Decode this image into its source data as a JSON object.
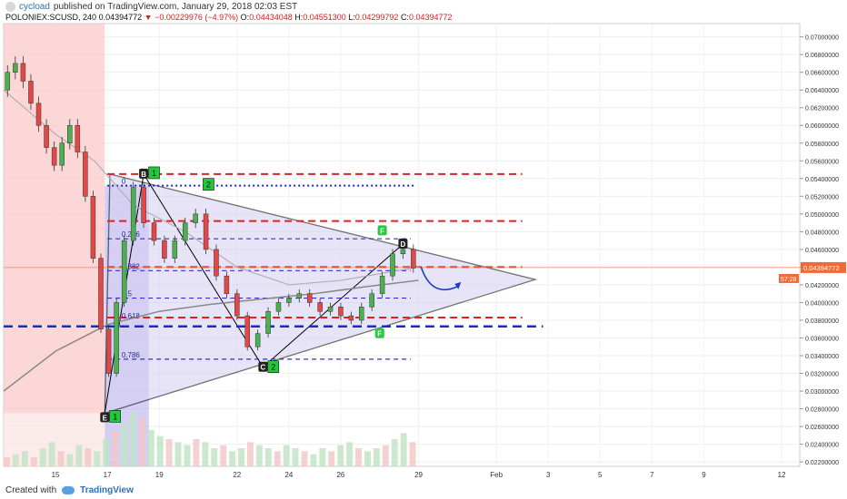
{
  "header": {
    "user": "cycload",
    "published_text": "published on TradingView.com, January 29, 2018 02:03 EST",
    "symbol": "POLONIEX:SCUSD, 240",
    "last": "0.04394772",
    "change": "−0.00229976 (−4.97%)",
    "ohlc": [
      {
        "label": "O:",
        "value": "0.04434048"
      },
      {
        "label": "H:",
        "value": "0.04551300"
      },
      {
        "label": "L:",
        "value": "0.04299792"
      },
      {
        "label": "C:",
        "value": "0.04394772"
      }
    ]
  },
  "footer": {
    "created_with": "Created with",
    "brand": "TradingView"
  },
  "chart_data": {
    "type": "line",
    "x_tick_labels": [
      "15",
      "17",
      "19",
      "22",
      "24",
      "26",
      "29",
      "Feb",
      "3",
      "5",
      "7",
      "9",
      "12"
    ],
    "y_ticks": [
      0.022,
      0.024,
      0.026,
      0.028,
      0.03,
      0.032,
      0.034,
      0.036,
      0.038,
      0.04,
      0.042,
      0.044,
      0.046,
      0.048,
      0.05,
      0.052,
      0.054,
      0.056,
      0.058,
      0.06,
      0.062,
      0.064,
      0.066,
      0.068,
      0.07
    ],
    "y_tick_labels": [
      "0.02200000",
      "0.02400000",
      "0.02600000",
      "0.02800000",
      "0.03000000",
      "0.03200000",
      "0.03400000",
      "0.03600000",
      "0.03800000",
      "0.04000000",
      "0.04200000",
      "0.04400000",
      "0.04600000",
      "0.04800000",
      "0.05000000",
      "0.05200000",
      "0.05400000",
      "0.05600000",
      "0.05800000",
      "0.06000000",
      "0.06200000",
      "0.06400000",
      "0.06600000",
      "0.06800000",
      "0.07000000"
    ],
    "ylim": [
      0.0215,
      0.0715
    ],
    "last_price": 0.04394772,
    "last_price_label": "0.04394772",
    "countdown": "57:28",
    "price_path": [
      {
        "d": 13.0,
        "p": 0.064
      },
      {
        "d": 13.3,
        "p": 0.066
      },
      {
        "d": 13.6,
        "p": 0.067
      },
      {
        "d": 13.9,
        "p": 0.065
      },
      {
        "d": 14.2,
        "p": 0.0625
      },
      {
        "d": 14.5,
        "p": 0.06
      },
      {
        "d": 14.8,
        "p": 0.0575
      },
      {
        "d": 15.1,
        "p": 0.0555
      },
      {
        "d": 15.4,
        "p": 0.058
      },
      {
        "d": 15.7,
        "p": 0.06
      },
      {
        "d": 16.0,
        "p": 0.057
      },
      {
        "d": 16.3,
        "p": 0.052
      },
      {
        "d": 16.6,
        "p": 0.045
      },
      {
        "d": 16.9,
        "p": 0.037
      },
      {
        "d": 17.2,
        "p": 0.032
      },
      {
        "d": 17.5,
        "p": 0.04
      },
      {
        "d": 17.8,
        "p": 0.047
      },
      {
        "d": 18.2,
        "p": 0.053
      },
      {
        "d": 18.6,
        "p": 0.049
      },
      {
        "d": 19.0,
        "p": 0.047
      },
      {
        "d": 19.4,
        "p": 0.045
      },
      {
        "d": 19.8,
        "p": 0.047
      },
      {
        "d": 20.2,
        "p": 0.049
      },
      {
        "d": 20.6,
        "p": 0.05
      },
      {
        "d": 21.0,
        "p": 0.046
      },
      {
        "d": 21.4,
        "p": 0.043
      },
      {
        "d": 21.8,
        "p": 0.041
      },
      {
        "d": 22.2,
        "p": 0.0385
      },
      {
        "d": 22.6,
        "p": 0.035
      },
      {
        "d": 23.0,
        "p": 0.0365
      },
      {
        "d": 23.4,
        "p": 0.039
      },
      {
        "d": 23.8,
        "p": 0.04
      },
      {
        "d": 24.2,
        "p": 0.0405
      },
      {
        "d": 24.6,
        "p": 0.041
      },
      {
        "d": 25.0,
        "p": 0.04
      },
      {
        "d": 25.4,
        "p": 0.039
      },
      {
        "d": 25.8,
        "p": 0.0395
      },
      {
        "d": 26.2,
        "p": 0.0385
      },
      {
        "d": 26.6,
        "p": 0.038
      },
      {
        "d": 27.0,
        "p": 0.0395
      },
      {
        "d": 27.4,
        "p": 0.041
      },
      {
        "d": 27.8,
        "p": 0.043
      },
      {
        "d": 28.2,
        "p": 0.0455
      },
      {
        "d": 28.6,
        "p": 0.046
      },
      {
        "d": 29.0,
        "p": 0.0439
      }
    ],
    "moving_average": [
      {
        "d": 13.0,
        "p": 0.064
      },
      {
        "d": 15.0,
        "p": 0.059
      },
      {
        "d": 16.5,
        "p": 0.056
      },
      {
        "d": 18.0,
        "p": 0.051
      },
      {
        "d": 20.0,
        "p": 0.048
      },
      {
        "d": 22.0,
        "p": 0.044
      },
      {
        "d": 24.0,
        "p": 0.042
      },
      {
        "d": 26.0,
        "p": 0.0425
      },
      {
        "d": 28.0,
        "p": 0.0435
      },
      {
        "d": 29.0,
        "p": 0.044
      }
    ],
    "long_average": [
      {
        "d": 13.0,
        "p": 0.03
      },
      {
        "d": 15.0,
        "p": 0.0345
      },
      {
        "d": 17.0,
        "p": 0.0375
      },
      {
        "d": 19.0,
        "p": 0.039
      },
      {
        "d": 21.0,
        "p": 0.0398
      },
      {
        "d": 23.0,
        "p": 0.0404
      },
      {
        "d": 25.0,
        "p": 0.041
      },
      {
        "d": 27.0,
        "p": 0.0418
      },
      {
        "d": 29.0,
        "p": 0.0425
      }
    ],
    "triangle": [
      {
        "d": 16.9,
        "p": 0.0275
      },
      {
        "d": 17.1,
        "p": 0.0545
      },
      {
        "d": 33.5,
        "p": 0.0426
      }
    ],
    "red_dashed_levels": [
      0.0545,
      0.0492,
      0.044,
      0.0383
    ],
    "blue_dashed_levels": [
      0.0472,
      0.0436,
      0.0405,
      0.0336
    ],
    "navy_dashed_level": 0.0373,
    "blue_dotted_level": 0.0532,
    "fib_labels": [
      {
        "text": "0",
        "p": 0.0532
      },
      {
        "text": "0.236",
        "p": 0.0472
      },
      {
        "text": "0.382",
        "p": 0.0436
      },
      {
        "text": "0.5",
        "p": 0.0405
      },
      {
        "text": "0.618",
        "p": 0.038
      },
      {
        "text": "0.786",
        "p": 0.0336
      }
    ],
    "pattern_labels": [
      {
        "text": "B",
        "d": 18.4,
        "p": 0.0545
      },
      {
        "text": "C",
        "d": 23.0,
        "p": 0.0327
      },
      {
        "text": "D",
        "d": 28.4,
        "p": 0.0466
      },
      {
        "text": "E",
        "d": 16.9,
        "p": 0.027
      },
      {
        "text": "F",
        "d": 27.6,
        "p": 0.0481
      },
      {
        "text": "F",
        "d": 27.5,
        "p": 0.0365
      }
    ],
    "count_badges": [
      {
        "text": "1",
        "d": 18.8,
        "p": 0.0546
      },
      {
        "text": "2",
        "d": 20.9,
        "p": 0.0533
      },
      {
        "text": "2",
        "d": 23.4,
        "p": 0.0327
      },
      {
        "text": "1",
        "d": 17.3,
        "p": 0.0271
      }
    ],
    "volume": [
      3,
      4,
      5,
      3,
      6,
      8,
      5,
      4,
      7,
      6,
      5,
      9,
      12,
      14,
      18,
      16,
      12,
      10,
      9,
      8,
      7,
      9,
      8,
      6,
      7,
      5,
      6,
      8,
      7,
      6,
      5,
      7,
      6,
      5,
      4,
      6,
      5,
      7,
      8,
      6,
      5,
      6,
      7,
      9,
      11,
      8
    ]
  }
}
